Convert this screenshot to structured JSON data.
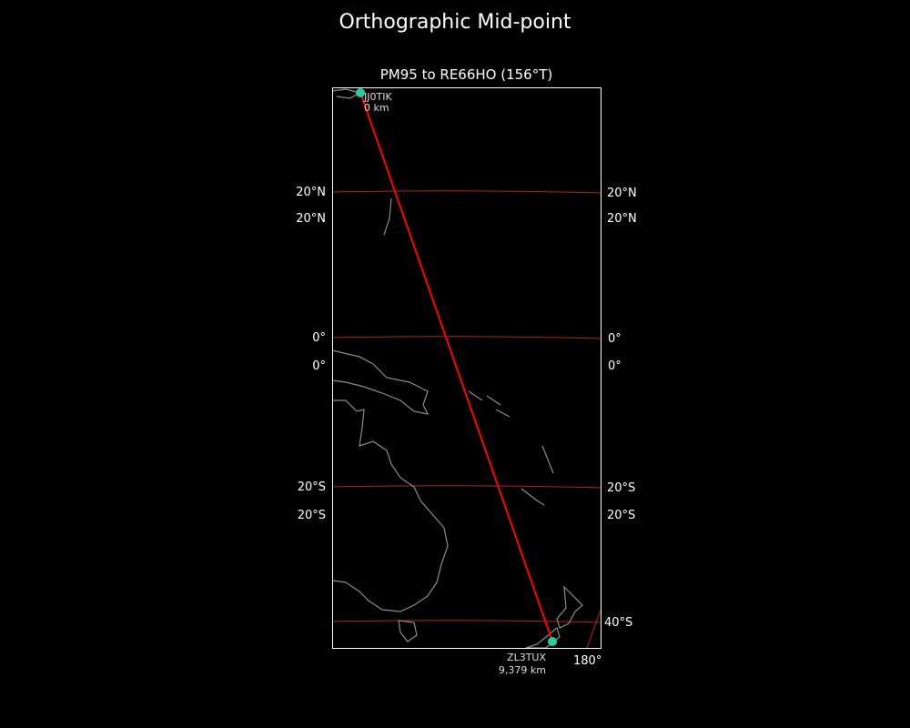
{
  "figure": {
    "title": "Orthographic Mid-point"
  },
  "map": {
    "title": "PM95 to RE66HO (156°T)",
    "projection": "orthographic",
    "colors": {
      "background": "#000000",
      "coast": "#8c8c8c",
      "graticule": "#b22222",
      "path": "#ff0000",
      "marker": "#20d0a0",
      "frame": "#ffffff"
    },
    "lat_labels": {
      "n20": "20°N",
      "eq": "0°",
      "s20": "20°S",
      "s40": "40°S"
    },
    "lon_labels": {
      "e180": "180°"
    },
    "start": {
      "call": "JJ0TIK",
      "distance": "0 km"
    },
    "end": {
      "call": "ZL3TUX",
      "distance": "9,379 km"
    }
  }
}
